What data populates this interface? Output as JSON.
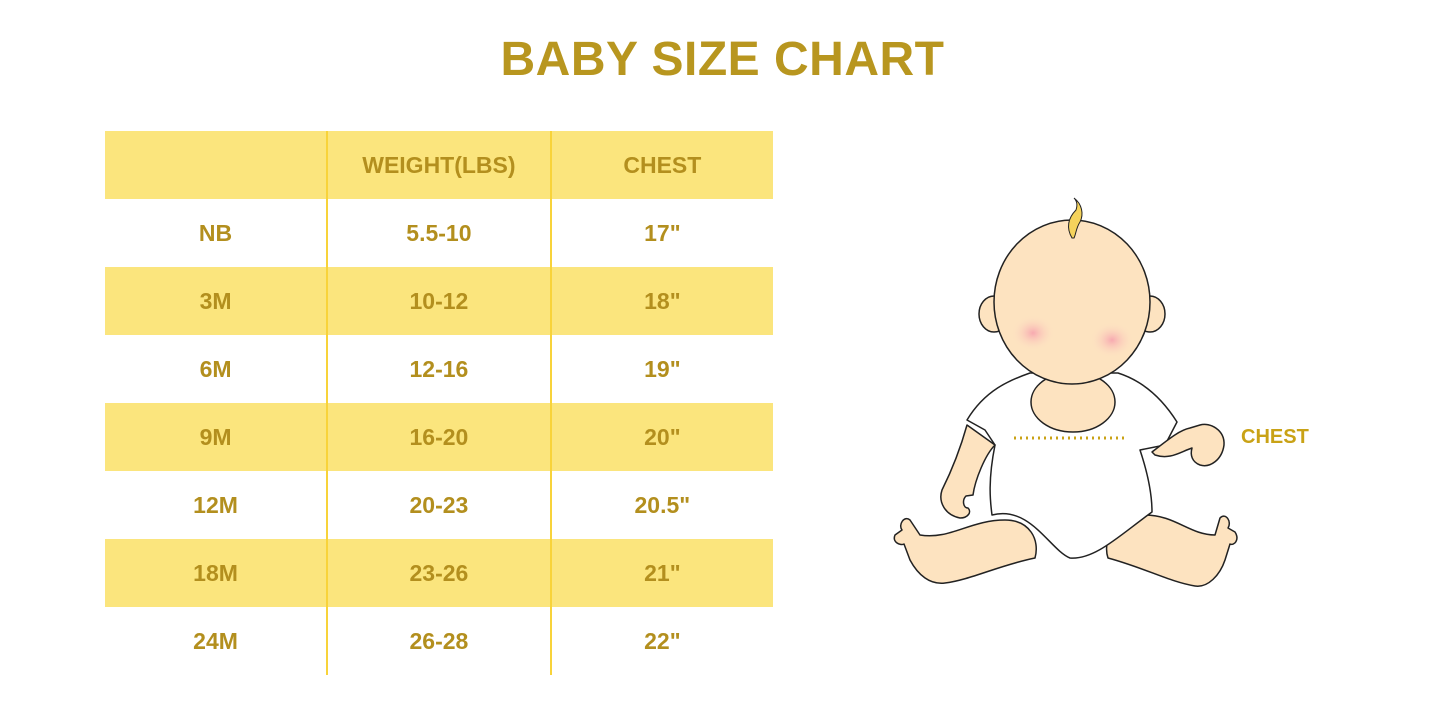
{
  "title": "BABY SIZE CHART",
  "table": {
    "headers": [
      "",
      "WEIGHT(LBS)",
      "CHEST"
    ],
    "rows": [
      [
        "NB",
        "5.5-10",
        "17\""
      ],
      [
        "3M",
        "10-12",
        "18\""
      ],
      [
        "6M",
        "12-16",
        "19\""
      ],
      [
        "9M",
        "16-20",
        "20\""
      ],
      [
        "12M",
        "20-23",
        "20.5\""
      ],
      [
        "18M",
        "23-26",
        "21\""
      ],
      [
        "24M",
        "26-28",
        "22\""
      ]
    ]
  },
  "illustration": {
    "chest_label": "CHEST"
  },
  "colors": {
    "accent": "#b8961f",
    "band": "#fbe57d",
    "divider": "#f8d33a"
  }
}
